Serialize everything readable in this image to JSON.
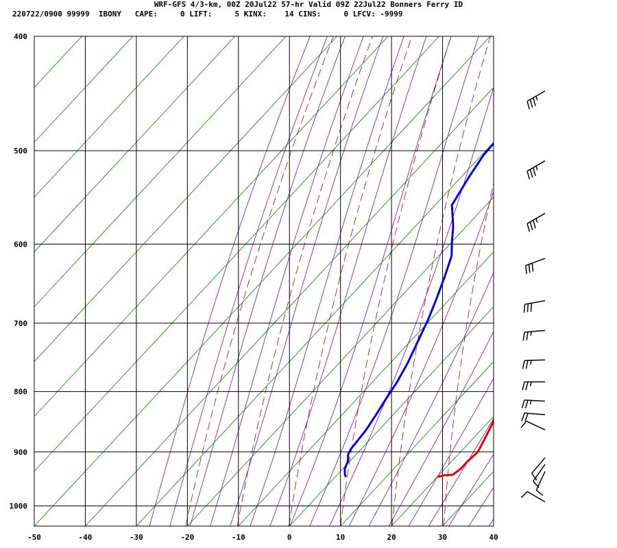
{
  "header": {
    "line1": "WRF-GFS 4/3-km, 00Z 20Jul22 57-hr Valid 09Z 22Jul22 Bonners Ferry ID",
    "line2": "220722/0900 99999  IBONY   CAPE:     0 LIFT:     5 KINX:    14 CINS:     0 LFCV: -9999"
  },
  "chart_data": {
    "type": "line",
    "title": "WRF-GFS 4/3-km, 00Z 20Jul22 57-hr Valid 09Z 22Jul22 Bonners Ferry ID",
    "xlabel": "",
    "ylabel": "",
    "x_ticks": [
      -50,
      -40,
      -30,
      -20,
      -10,
      0,
      10,
      20,
      30,
      40
    ],
    "y_ticks": [
      400,
      500,
      600,
      700,
      800,
      900,
      1000
    ],
    "xlim": [
      -50,
      40
    ],
    "ylim": [
      1040,
      400
    ],
    "y_scale": "log",
    "grid": true,
    "series": [
      {
        "color": "#e00000",
        "points": [
          [
            20.0,
            945
          ],
          [
            21.0,
            942
          ],
          [
            22.6,
            941
          ],
          [
            23.1,
            931
          ],
          [
            23.1,
            916
          ],
          [
            23.4,
            900
          ],
          [
            22.2,
            874
          ],
          [
            20.8,
            846
          ],
          [
            19.3,
            821
          ],
          [
            17.6,
            801
          ],
          [
            15.6,
            780
          ],
          [
            13.5,
            759
          ],
          [
            11.4,
            739
          ],
          [
            10.0,
            726
          ],
          [
            8.0,
            703
          ],
          [
            5.6,
            678
          ],
          [
            3.3,
            654
          ],
          [
            0.9,
            629
          ],
          [
            -1.5,
            605
          ],
          [
            -3.7,
            582
          ],
          [
            -6.0,
            559
          ],
          [
            -8.4,
            536
          ],
          [
            -10.6,
            514
          ],
          [
            -12.8,
            493
          ],
          [
            -15.0,
            472
          ],
          [
            -17.2,
            452
          ],
          [
            -19.2,
            434
          ]
        ]
      },
      {
        "color": "#0000dd",
        "points": [
          [
            2.1,
            945
          ],
          [
            1.4,
            940
          ],
          [
            0.4,
            930
          ],
          [
            -0.4,
            916
          ],
          [
            -1.6,
            904
          ],
          [
            -2.0,
            895
          ],
          [
            -2.5,
            863
          ],
          [
            -3.3,
            838
          ],
          [
            -4.3,
            811
          ],
          [
            -5.2,
            785
          ],
          [
            -6.6,
            756
          ],
          [
            -8.6,
            724
          ],
          [
            -10.5,
            695
          ],
          [
            -12.6,
            668
          ],
          [
            -15.0,
            640
          ],
          [
            -17.5,
            614
          ],
          [
            -20.2,
            596
          ],
          [
            -22.5,
            580
          ],
          [
            -26.7,
            556
          ],
          [
            -28.5,
            526
          ],
          [
            -29.6,
            505
          ],
          [
            -30.0,
            480
          ],
          [
            -30.1,
            458
          ],
          [
            -30.6,
            437
          ]
        ]
      }
    ],
    "wind_barbs": [
      {
        "p": 445,
        "dir": 240,
        "speed": 35
      },
      {
        "p": 510,
        "dir": 240,
        "speed": 35
      },
      {
        "p": 565,
        "dir": 240,
        "speed": 35
      },
      {
        "p": 617,
        "dir": 250,
        "speed": 30
      },
      {
        "p": 670,
        "dir": 260,
        "speed": 30
      },
      {
        "p": 710,
        "dir": 265,
        "speed": 25
      },
      {
        "p": 752,
        "dir": 268,
        "speed": 25
      },
      {
        "p": 785,
        "dir": 270,
        "speed": 25
      },
      {
        "p": 815,
        "dir": 273,
        "speed": 25
      },
      {
        "p": 837,
        "dir": 275,
        "speed": 20
      },
      {
        "p": 862,
        "dir": 295,
        "speed": 10
      },
      {
        "p": 910,
        "dir": 220,
        "speed": 10
      },
      {
        "p": 922,
        "dir": 215,
        "speed": 10
      },
      {
        "p": 935,
        "dir": 205,
        "speed": 10
      },
      {
        "p": 992,
        "dir": 300,
        "speed": 10
      }
    ]
  },
  "styles": {
    "grid_color": "#000000",
    "isotherm_color": "#008000",
    "dry_adiabat_color": "#aa0000",
    "moist_adiabat_color": "#8000c0",
    "barb_color": "#000000"
  }
}
